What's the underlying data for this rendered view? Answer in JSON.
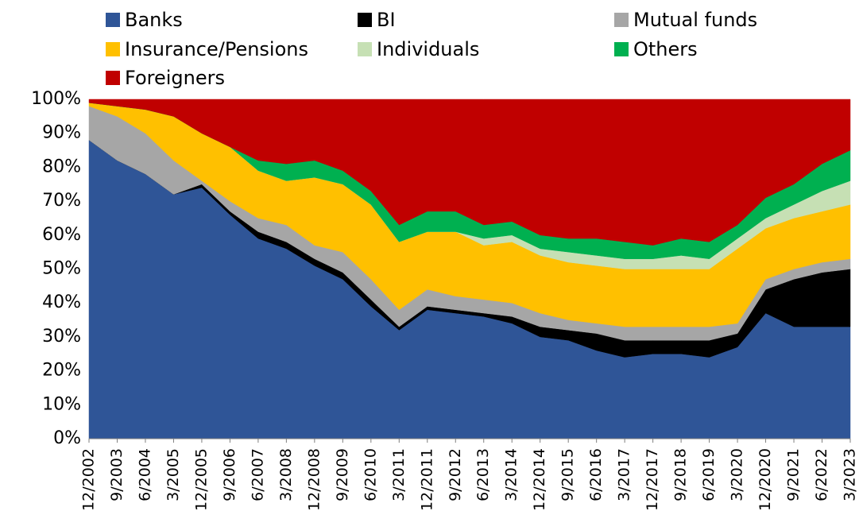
{
  "chart_data": {
    "type": "stacked_area",
    "categories": [
      "12/2002",
      "9/2003",
      "6/2004",
      "3/2005",
      "12/2005",
      "9/2006",
      "6/2007",
      "3/2008",
      "12/2008",
      "9/2009",
      "6/2010",
      "3/2011",
      "12/2011",
      "9/2012",
      "6/2013",
      "3/2014",
      "12/2014",
      "9/2015",
      "6/2016",
      "3/2017",
      "12/2017",
      "9/2018",
      "6/2019",
      "3/2020",
      "12/2020",
      "9/2021",
      "6/2022",
      "3/2023"
    ],
    "series": [
      {
        "name": "Banks",
        "color": "#2f5597",
        "values": [
          88,
          82,
          78,
          72,
          74,
          66,
          59,
          56,
          51,
          47,
          39,
          32,
          38,
          37,
          36,
          34,
          30,
          29,
          26,
          24,
          25,
          25,
          24,
          27,
          37,
          33,
          33,
          33
        ]
      },
      {
        "name": "BI",
        "color": "#000000",
        "values": [
          0,
          0,
          0,
          0,
          1,
          1,
          2,
          2,
          2,
          2,
          2,
          1,
          1,
          1,
          1,
          2,
          3,
          3,
          5,
          5,
          4,
          4,
          5,
          4,
          7,
          14,
          16,
          17
        ]
      },
      {
        "name": "Mutual funds",
        "color": "#a6a6a6",
        "values": [
          10,
          13,
          12,
          10,
          1,
          3,
          4,
          5,
          4,
          6,
          6,
          5,
          5,
          4,
          4,
          4,
          4,
          3,
          3,
          4,
          4,
          4,
          4,
          3,
          3,
          3,
          3,
          3
        ]
      },
      {
        "name": "Insurance/Pensions",
        "color": "#ffc000",
        "values": [
          1,
          3,
          7,
          13,
          14,
          16,
          14,
          13,
          20,
          20,
          22,
          20,
          17,
          19,
          16,
          18,
          17,
          17,
          17,
          17,
          17,
          17,
          17,
          22,
          15,
          15,
          15,
          16
        ]
      },
      {
        "name": "Individuals",
        "color": "#c6e0b4",
        "values": [
          0,
          0,
          0,
          0,
          0,
          0,
          0,
          0,
          0,
          0,
          0,
          0,
          0,
          0,
          2,
          2,
          2,
          3,
          3,
          3,
          3,
          4,
          3,
          3,
          3,
          4,
          6,
          7
        ]
      },
      {
        "name": "Others",
        "color": "#00b050",
        "values": [
          0,
          0,
          0,
          0,
          0,
          0,
          3,
          5,
          5,
          4,
          4,
          5,
          6,
          6,
          4,
          4,
          4,
          4,
          5,
          5,
          4,
          5,
          5,
          4,
          6,
          6,
          8,
          9
        ]
      },
      {
        "name": "Foreigners",
        "color": "#c00000",
        "values": [
          1,
          2,
          3,
          5,
          10,
          14,
          18,
          19,
          18,
          21,
          27,
          37,
          33,
          33,
          37,
          36,
          40,
          41,
          41,
          42,
          43,
          41,
          42,
          37,
          29,
          25,
          19,
          15
        ]
      }
    ],
    "ylim": [
      0,
      100
    ],
    "yticks": [
      {
        "value": 0,
        "label": "0%"
      },
      {
        "value": 10,
        "label": "10%"
      },
      {
        "value": 20,
        "label": "20%"
      },
      {
        "value": 30,
        "label": "30%"
      },
      {
        "value": 40,
        "label": "40%"
      },
      {
        "value": 50,
        "label": "50%"
      },
      {
        "value": 60,
        "label": "60%"
      },
      {
        "value": 70,
        "label": "70%"
      },
      {
        "value": 80,
        "label": "80%"
      },
      {
        "value": 90,
        "label": "90%"
      },
      {
        "value": 100,
        "label": "100%"
      }
    ],
    "grid": false,
    "legend": "top"
  }
}
